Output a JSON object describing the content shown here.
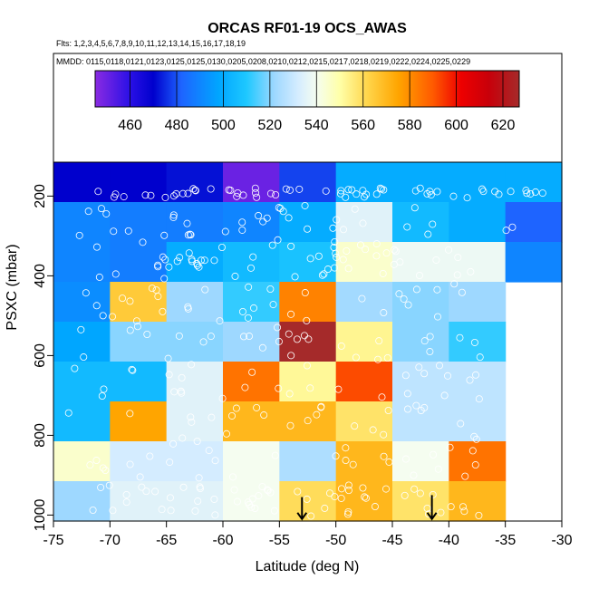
{
  "chart_data": {
    "type": "heatmap",
    "title": "ORCAS RF01-19 OCS_AWAS",
    "flights_line": "Flts: 1,2,3,4,5,6,7,8,9,10,11,12,13,14,15,16,17,18,19",
    "dates_line": "MMDD: 0115,0118,0121,0123,0125,0125,0130,0205,0208,0210,0212,0215,0217,0218,0219,0222,0224,0225,0229",
    "xlabel": "Latitude (deg N)",
    "ylabel": "PSXC (mbar)",
    "xlim": [
      -75,
      -30
    ],
    "ylim": [
      1015,
      115
    ],
    "x_ticks": [
      -75,
      -70,
      -65,
      -60,
      -55,
      -50,
      -45,
      -40,
      -35,
      -30
    ],
    "y_ticks": [
      200,
      400,
      600,
      800,
      1000
    ],
    "colorbar": {
      "range": [
        445,
        627
      ],
      "ticks": [
        460,
        480,
        500,
        520,
        540,
        560,
        580,
        600,
        620
      ],
      "stops": [
        {
          "v": 445,
          "c": "#8a2be2"
        },
        {
          "v": 460,
          "c": "#2a10e6"
        },
        {
          "v": 470,
          "c": "#0000cd"
        },
        {
          "v": 482,
          "c": "#1e64ff"
        },
        {
          "v": 498,
          "c": "#00a6ff"
        },
        {
          "v": 510,
          "c": "#1ec8ff"
        },
        {
          "v": 522,
          "c": "#9ed8ff"
        },
        {
          "v": 532,
          "c": "#d4ecff"
        },
        {
          "v": 540,
          "c": "#f5fdf0"
        },
        {
          "v": 550,
          "c": "#ffffa8"
        },
        {
          "v": 562,
          "c": "#ffd54a"
        },
        {
          "v": 575,
          "c": "#ffa500"
        },
        {
          "v": 590,
          "c": "#ff5a00"
        },
        {
          "v": 602,
          "c": "#ee0000"
        },
        {
          "v": 614,
          "c": "#c8000a"
        },
        {
          "v": 627,
          "c": "#a52a2a"
        }
      ]
    },
    "lat_bins": [
      [
        -75,
        -70
      ],
      [
        -70,
        -65
      ],
      [
        -65,
        -60
      ],
      [
        -60,
        -55
      ],
      [
        -55,
        -50
      ],
      [
        -50,
        -45
      ],
      [
        -45,
        -40
      ],
      [
        -40,
        -35
      ],
      [
        -35,
        -30
      ]
    ],
    "pressure_bins": [
      [
        115,
        215
      ],
      [
        215,
        315
      ],
      [
        315,
        415
      ],
      [
        415,
        515
      ],
      [
        515,
        615
      ],
      [
        615,
        715
      ],
      [
        715,
        815
      ],
      [
        815,
        915
      ],
      [
        915,
        1015
      ]
    ],
    "cell_values": [
      [
        470,
        470,
        472,
        450,
        478,
        500,
        500,
        500,
        500
      ],
      [
        490,
        488,
        488,
        490,
        500,
        535,
        505,
        500,
        482
      ],
      [
        490,
        488,
        500,
        505,
        508,
        545,
        538,
        538,
        490
      ],
      [
        492,
        565,
        522,
        512,
        582,
        523,
        520,
        522,
        null
      ],
      [
        498,
        520,
        520,
        522,
        627,
        553,
        520,
        512,
        null
      ],
      [
        505,
        505,
        535,
        585,
        552,
        592,
        528,
        528,
        null
      ],
      [
        505,
        575,
        535,
        570,
        570,
        558,
        528,
        528,
        null
      ],
      [
        545,
        532,
        532,
        540,
        525,
        570,
        540,
        585,
        null
      ],
      [
        522,
        535,
        535,
        540,
        560,
        570,
        558,
        570,
        null
      ]
    ],
    "sample_bands": [
      {
        "lat": [
          -72,
          -36
        ],
        "p": [
          180,
          205
        ],
        "n": 52
      },
      {
        "lat": [
          -36,
          -30.5
        ],
        "p": [
          182,
          200
        ],
        "n": 8
      },
      {
        "lat": [
          -73,
          -41
        ],
        "p": [
          220,
          305
        ],
        "n": 34
      },
      {
        "lat": [
          -34,
          -35
        ],
        "p": [
          270,
          300
        ],
        "n": 2
      },
      {
        "lat": [
          -72,
          -38
        ],
        "p": [
          310,
          410
        ],
        "n": 58
      },
      {
        "lat": [
          -73,
          -37
        ],
        "p": [
          415,
          515
        ],
        "n": 34
      },
      {
        "lat": [
          -73,
          -37
        ],
        "p": [
          520,
          610
        ],
        "n": 30
      },
      {
        "lat": [
          -74,
          -37
        ],
        "p": [
          620,
          710
        ],
        "n": 30
      },
      {
        "lat": [
          -74,
          -37
        ],
        "p": [
          720,
          815
        ],
        "n": 28
      },
      {
        "lat": [
          -72,
          -37
        ],
        "p": [
          820,
          910
        ],
        "n": 28
      },
      {
        "lat": [
          -72,
          -37
        ],
        "p": [
          925,
          1005
        ],
        "n": 60
      }
    ],
    "annotations": [
      {
        "type": "arrow-down",
        "lat": -53,
        "p": [
          955,
          1010
        ]
      },
      {
        "type": "arrow-down",
        "lat": -41.5,
        "p": [
          950,
          1010
        ]
      }
    ]
  }
}
